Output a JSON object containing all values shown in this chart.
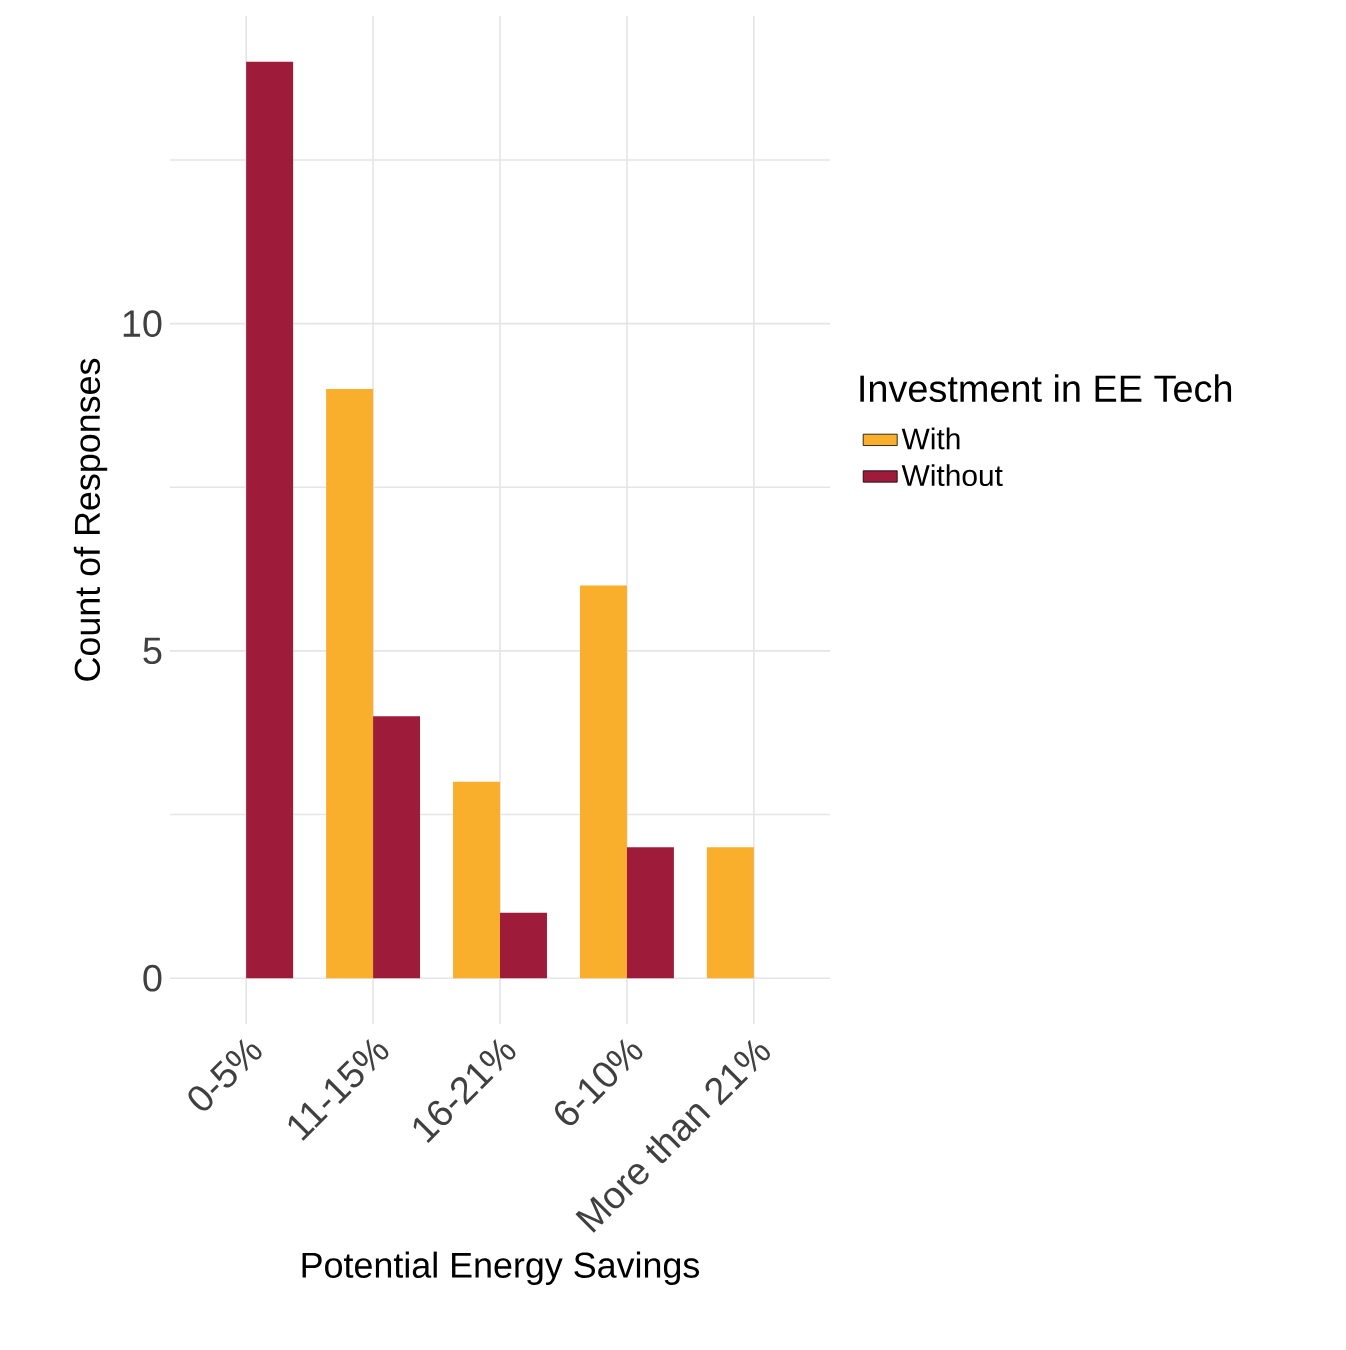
{
  "chart_data": {
    "type": "bar",
    "xlabel": "Potential Energy Savings",
    "ylabel": "Count of Responses",
    "legend_title": "Investment in EE Tech",
    "categories": [
      "0-5%",
      "11-15%",
      "16-21%",
      "6-10%",
      "More than 21%"
    ],
    "series": [
      {
        "name": "With",
        "color": "#f9ae2c",
        "values": [
          null,
          9,
          3,
          6,
          2
        ]
      },
      {
        "name": "Without",
        "color": "#9e1b3a",
        "values": [
          14,
          4,
          1,
          2,
          null
        ]
      }
    ],
    "ylim": [
      -0.7,
      14.7
    ],
    "yticks": [
      0,
      {
        "value": 2.5,
        "label": null
      },
      5,
      {
        "value": 7.5,
        "label": null
      },
      10,
      {
        "value": 12.5,
        "label": null
      }
    ],
    "grid": true,
    "legend": "right"
  }
}
